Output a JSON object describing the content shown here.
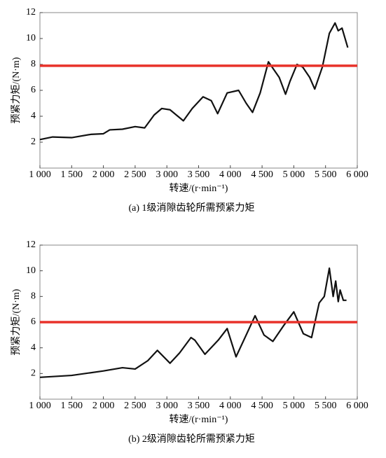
{
  "chart_data": [
    {
      "type": "line",
      "x_label": "转速/(r·min⁻¹)",
      "y_label": "预紧力矩/(N·m)",
      "caption": "(a) 1级消隙齿轮所需预紧力矩",
      "xlim": [
        1000,
        6000
      ],
      "ylim": [
        0,
        12
      ],
      "xticks": [
        {
          "value": 1000,
          "label": "1 000"
        },
        {
          "value": 1500,
          "label": "1 500"
        },
        {
          "value": 2000,
          "label": "2 000"
        },
        {
          "value": 2500,
          "label": "2 500"
        },
        {
          "value": 3000,
          "label": "3 000"
        },
        {
          "value": 3500,
          "label": "3 500"
        },
        {
          "value": 4000,
          "label": "4 000"
        },
        {
          "value": 4500,
          "label": "4 500"
        },
        {
          "value": 5000,
          "label": "5 000"
        },
        {
          "value": 5500,
          "label": "5 500"
        },
        {
          "value": 6000,
          "label": "6 000"
        }
      ],
      "yticks": [
        2,
        4,
        6,
        8,
        10,
        12
      ],
      "hline": {
        "value": 7.9,
        "color": "#e8322a"
      },
      "series": [
        {
          "color": "#111111",
          "x": [
            1000,
            1200,
            1500,
            1800,
            2000,
            2100,
            2300,
            2500,
            2650,
            2800,
            2920,
            3050,
            3260,
            3400,
            3570,
            3700,
            3800,
            3950,
            4130,
            4250,
            4350,
            4470,
            4600,
            4770,
            4870,
            4940,
            5050,
            5140,
            5250,
            5330,
            5450,
            5560,
            5650,
            5700,
            5760,
            5850
          ],
          "values": [
            2.2,
            2.4,
            2.35,
            2.6,
            2.65,
            2.95,
            3.0,
            3.2,
            3.1,
            4.1,
            4.6,
            4.5,
            3.65,
            4.6,
            5.5,
            5.2,
            4.2,
            5.8,
            6.0,
            5.0,
            4.3,
            5.8,
            8.2,
            7.0,
            5.7,
            6.7,
            8.0,
            7.8,
            7.0,
            6.1,
            7.8,
            10.4,
            11.2,
            10.6,
            10.8,
            9.3
          ]
        }
      ]
    },
    {
      "type": "line",
      "x_label": "转速/(r·min⁻¹)",
      "y_label": "预紧力矩/(N·m)",
      "caption": "(b) 2级消隙齿轮所需预紧力矩",
      "xlim": [
        1000,
        6000
      ],
      "ylim": [
        0,
        12
      ],
      "xticks": [
        {
          "value": 1000,
          "label": "1 000"
        },
        {
          "value": 1500,
          "label": "1 500"
        },
        {
          "value": 2000,
          "label": "2 000"
        },
        {
          "value": 2500,
          "label": "2 500"
        },
        {
          "value": 3000,
          "label": "3 000"
        },
        {
          "value": 3500,
          "label": "3 500"
        },
        {
          "value": 4000,
          "label": "4 000"
        },
        {
          "value": 4500,
          "label": "4 500"
        },
        {
          "value": 5000,
          "label": "5 000"
        },
        {
          "value": 5500,
          "label": "5 500"
        },
        {
          "value": 6000,
          "label": "6 000"
        }
      ],
      "yticks": [
        2,
        4,
        6,
        8,
        10,
        12
      ],
      "hline": {
        "value": 6,
        "color": "#e8322a"
      },
      "series": [
        {
          "color": "#111111",
          "x": [
            1000,
            1500,
            2000,
            2300,
            2500,
            2700,
            2850,
            3050,
            3200,
            3380,
            3440,
            3600,
            3810,
            3950,
            4090,
            4250,
            4390,
            4530,
            4670,
            4850,
            5000,
            5150,
            5280,
            5400,
            5480,
            5560,
            5620,
            5660,
            5700,
            5730,
            5780,
            5830
          ],
          "values": [
            1.7,
            1.85,
            2.2,
            2.45,
            2.35,
            3.0,
            3.8,
            2.8,
            3.6,
            4.8,
            4.6,
            3.5,
            4.6,
            5.5,
            3.3,
            5.0,
            6.5,
            5.0,
            4.5,
            5.8,
            6.8,
            5.1,
            4.8,
            7.5,
            8.0,
            10.2,
            8.0,
            9.2,
            7.6,
            8.5,
            7.7,
            7.7
          ]
        }
      ]
    }
  ]
}
